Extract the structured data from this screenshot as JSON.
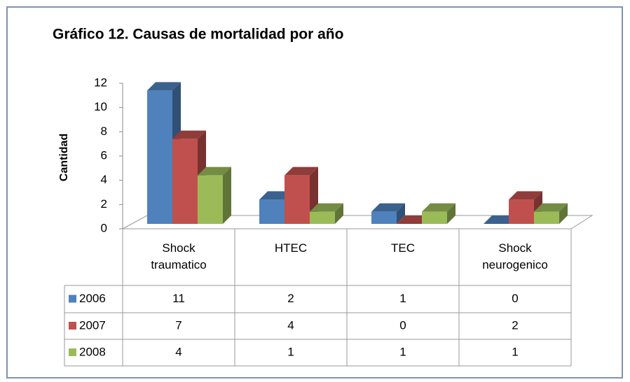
{
  "chart_data": {
    "type": "bar3d",
    "title": "Gráfico 12. Causas de mortalidad por año",
    "y_label": "Cantidad",
    "categories": [
      "Shock traumatico",
      "HTEC",
      "TEC",
      "Shock neurogenico"
    ],
    "series": [
      {
        "name": "2006",
        "color": "#4f81bd",
        "values": [
          11,
          2,
          1,
          0
        ]
      },
      {
        "name": "2007",
        "color": "#c0504d",
        "values": [
          7,
          4,
          0,
          2
        ]
      },
      {
        "name": "2008",
        "color": "#9bbb59",
        "values": [
          4,
          1,
          1,
          1
        ]
      }
    ],
    "ylim": [
      0,
      12
    ],
    "yticks": [
      0,
      2,
      4,
      6,
      8,
      10,
      12
    ],
    "grid": false
  }
}
